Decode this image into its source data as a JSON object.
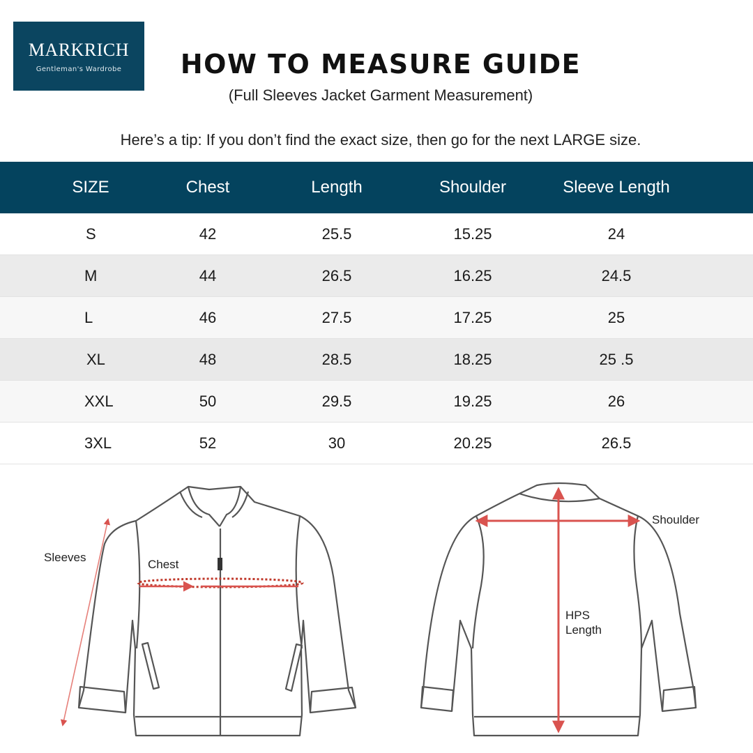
{
  "logo": {
    "brand": "MARKRICH",
    "tagline": "Gentleman's Wardrobe"
  },
  "header": {
    "title": "HOW TO MEASURE GUIDE",
    "subtitle": "(Full Sleeves Jacket Garment Measurement)",
    "tip": "Here’s a tip: If you don’t find the exact size, then go for the next LARGE size."
  },
  "table": {
    "columns": [
      "SIZE",
      "Chest",
      "Length",
      "Shoulder",
      "Sleeve Length"
    ],
    "rows": [
      [
        "S",
        "42",
        "25.5",
        "15.25",
        "24"
      ],
      [
        "M",
        "44",
        "26.5",
        "16.25",
        "24.5"
      ],
      [
        "L",
        "46",
        "27.5",
        "17.25",
        "25"
      ],
      [
        "XL",
        "48",
        "28.5",
        "18.25",
        "25 .5"
      ],
      [
        "XXL",
        "50",
        "29.5",
        "19.25",
        "26"
      ],
      [
        "3XL",
        "52",
        "30",
        "20.25",
        "26.5"
      ]
    ]
  },
  "diagram": {
    "front_labels": {
      "sleeves": "Sleeves",
      "chest": "Chest"
    },
    "back_labels": {
      "shoulder": "Shoulder",
      "length_line1": "HPS",
      "length_line2": "Length"
    }
  },
  "colors": {
    "brand": "#0b4560",
    "header_bg": "#04435e",
    "measure_line": "#d9534f",
    "outline": "#555555"
  }
}
